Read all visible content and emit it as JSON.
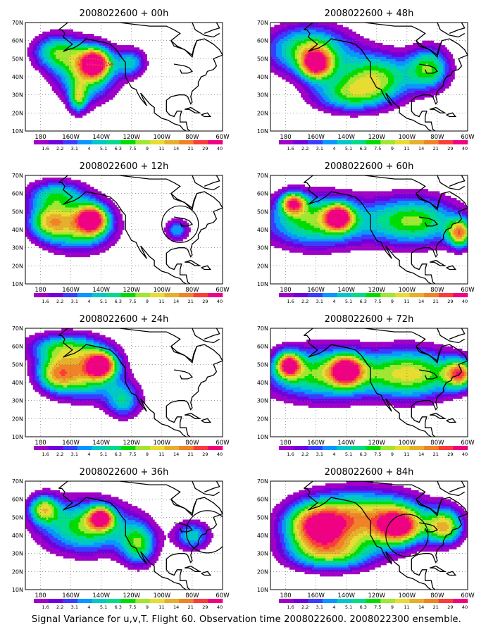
{
  "panels": [
    {
      "title": "2008022600 + 00h",
      "peaks": [
        {
          "lon": -144,
          "lat": 48,
          "w": 10,
          "h": 8,
          "a": 1.25
        },
        {
          "lon": -150,
          "lat": 42,
          "w": 20,
          "h": 16,
          "a": 0.95
        },
        {
          "lon": -170,
          "lat": 54,
          "w": 16,
          "h": 10,
          "a": 0.8
        },
        {
          "lon": -155,
          "lat": 28,
          "w": 6,
          "h": 8,
          "a": 0.7
        },
        {
          "lon": -120,
          "lat": 48,
          "w": 10,
          "h": 8,
          "a": 0.65
        }
      ]
    },
    {
      "title": "2008022600 + 48h",
      "peaks": [
        {
          "lon": -160,
          "lat": 47,
          "w": 10,
          "h": 8,
          "a": 1.2
        },
        {
          "lon": -165,
          "lat": 55,
          "w": 28,
          "h": 14,
          "a": 1.0
        },
        {
          "lon": -120,
          "lat": 40,
          "w": 25,
          "h": 14,
          "a": 0.95
        },
        {
          "lon": -85,
          "lat": 45,
          "w": 14,
          "h": 12,
          "a": 0.9
        },
        {
          "lon": -140,
          "lat": 30,
          "w": 25,
          "h": 10,
          "a": 0.7
        }
      ]
    },
    {
      "title": "2008022600 + 12h",
      "peaks": [
        {
          "lon": -146,
          "lat": 46,
          "w": 10,
          "h": 8,
          "a": 1.25
        },
        {
          "lon": -155,
          "lat": 42,
          "w": 24,
          "h": 14,
          "a": 0.95
        },
        {
          "lon": -175,
          "lat": 45,
          "w": 14,
          "h": 10,
          "a": 0.8
        },
        {
          "lon": -170,
          "lat": 60,
          "w": 20,
          "h": 8,
          "a": 0.7
        },
        {
          "lon": -90,
          "lat": 40,
          "w": 8,
          "h": 6,
          "a": 0.65
        }
      ]
    },
    {
      "title": "2008022600 + 60h",
      "peaks": [
        {
          "lon": -145,
          "lat": 47,
          "w": 9,
          "h": 7,
          "a": 1.2
        },
        {
          "lon": -175,
          "lat": 55,
          "w": 8,
          "h": 6,
          "a": 1.15
        },
        {
          "lon": -160,
          "lat": 45,
          "w": 35,
          "h": 15,
          "a": 1.0
        },
        {
          "lon": -95,
          "lat": 45,
          "w": 30,
          "h": 14,
          "a": 1.0
        },
        {
          "lon": -65,
          "lat": 38,
          "w": 8,
          "h": 8,
          "a": 1.15
        }
      ]
    },
    {
      "title": "2008022600 + 24h",
      "peaks": [
        {
          "lon": -140,
          "lat": 50,
          "w": 10,
          "h": 7,
          "a": 1.3
        },
        {
          "lon": -150,
          "lat": 45,
          "w": 22,
          "h": 14,
          "a": 1.0
        },
        {
          "lon": -170,
          "lat": 45,
          "w": 14,
          "h": 10,
          "a": 0.9
        },
        {
          "lon": -165,
          "lat": 60,
          "w": 25,
          "h": 8,
          "a": 0.75
        },
        {
          "lon": -125,
          "lat": 30,
          "w": 12,
          "h": 10,
          "a": 0.7
        }
      ]
    },
    {
      "title": "2008022600 + 72h",
      "peaks": [
        {
          "lon": -178,
          "lat": 50,
          "w": 8,
          "h": 7,
          "a": 1.25
        },
        {
          "lon": -140,
          "lat": 47,
          "w": 10,
          "h": 8,
          "a": 1.2
        },
        {
          "lon": -155,
          "lat": 45,
          "w": 40,
          "h": 15,
          "a": 1.0
        },
        {
          "lon": -95,
          "lat": 45,
          "w": 30,
          "h": 14,
          "a": 1.05
        },
        {
          "lon": -65,
          "lat": 45,
          "w": 10,
          "h": 8,
          "a": 1.15
        }
      ]
    },
    {
      "title": "2008022600 + 36h",
      "peaks": [
        {
          "lon": -140,
          "lat": 50,
          "w": 8,
          "h": 6,
          "a": 1.2
        },
        {
          "lon": -150,
          "lat": 45,
          "w": 30,
          "h": 15,
          "a": 1.0
        },
        {
          "lon": -178,
          "lat": 55,
          "w": 10,
          "h": 8,
          "a": 0.95
        },
        {
          "lon": -115,
          "lat": 35,
          "w": 12,
          "h": 12,
          "a": 0.85
        },
        {
          "lon": -80,
          "lat": 40,
          "w": 12,
          "h": 8,
          "a": 0.75
        }
      ]
    },
    {
      "title": "2008022600 + 84h",
      "peaks": [
        {
          "lon": -130,
          "lat": 50,
          "w": 40,
          "h": 15,
          "a": 1.2
        },
        {
          "lon": -160,
          "lat": 45,
          "w": 20,
          "h": 12,
          "a": 1.15
        },
        {
          "lon": -105,
          "lat": 45,
          "w": 15,
          "h": 10,
          "a": 1.2
        },
        {
          "lon": -75,
          "lat": 45,
          "w": 12,
          "h": 10,
          "a": 1.1
        },
        {
          "lon": -150,
          "lat": 30,
          "w": 30,
          "h": 10,
          "a": 0.9
        }
      ]
    }
  ],
  "lat_labels": [
    "70N",
    "60N",
    "50N",
    "40N",
    "30N",
    "20N",
    "10N"
  ],
  "lon_labels": [
    "180",
    "160W",
    "140W",
    "120W",
    "100W",
    "80W",
    "60W"
  ],
  "colorbar": {
    "labels": [
      "1.6",
      "2.2",
      "3.1",
      "4",
      "5.1",
      "6.3",
      "7.5",
      "9",
      "11",
      "14",
      "21",
      "29",
      "40"
    ],
    "colors": [
      "#a000c8",
      "#7000dc",
      "#3c3cff",
      "#0a96ff",
      "#00c8c8",
      "#00dc8c",
      "#00dc00",
      "#a0e632",
      "#e6dc32",
      "#e6af2d",
      "#f08228",
      "#fa3c3c",
      "#f00082"
    ]
  },
  "caption": "Signal Variance for u,v,T. Flight 60. Observation time 2008022600. 2008022300 ensemble.",
  "ocean_color": "#ffffff",
  "coast_color": "#000000",
  "flight_track_color": "#ff2a6d"
}
